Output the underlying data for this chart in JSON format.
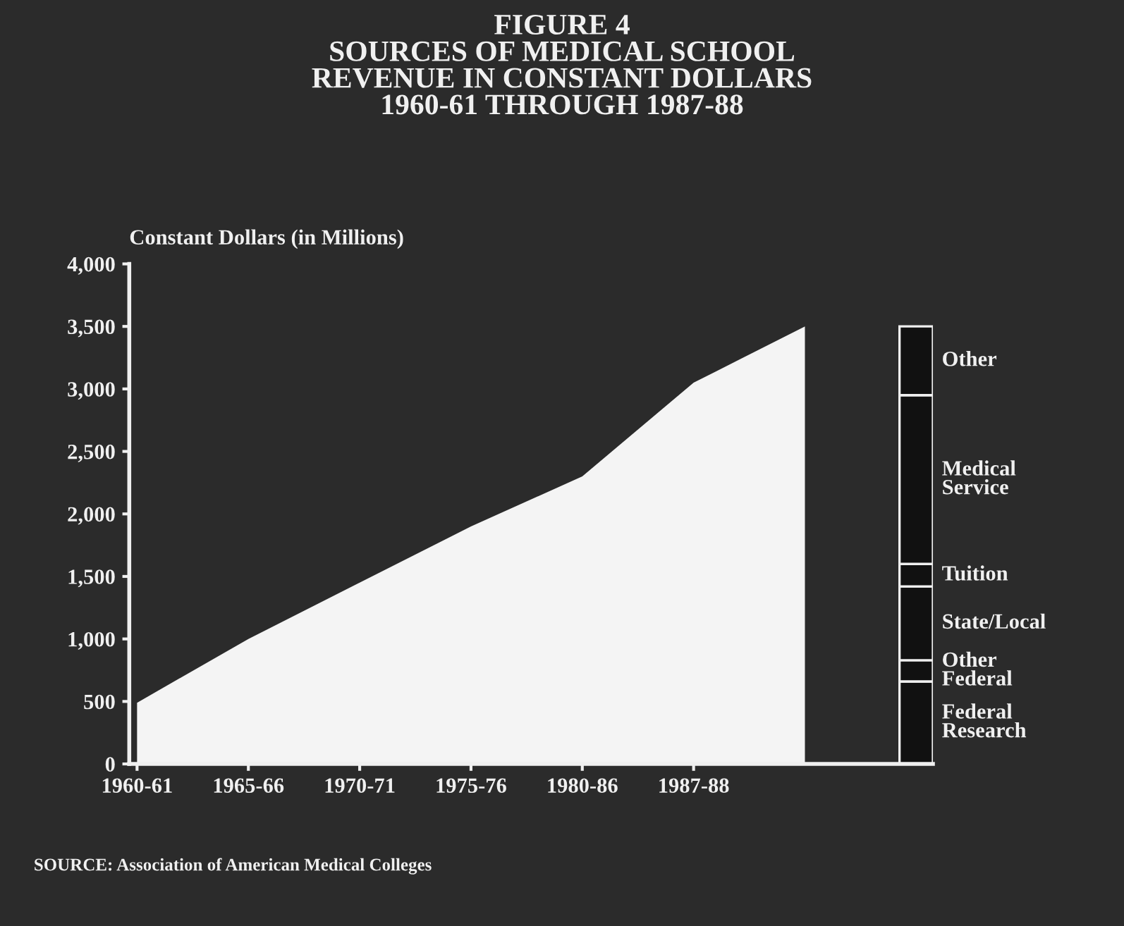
{
  "chart_data": {
    "type": "area",
    "title": "FIGURE 4\nSOURCES OF MEDICAL SCHOOL\nREVENUE IN CONSTANT DOLLARS\n1960-61 THROUGH 1987-88",
    "ylabel": "Constant Dollars (in Millions)",
    "categories": [
      "1960-61",
      "1965-66",
      "1970-71",
      "1975-76",
      "1980-86",
      "1987-88",
      null,
      null
    ],
    "stacked": true,
    "series": [
      {
        "color": "#f4f4f4",
        "values": [
          490,
          1000,
          1450,
          1900,
          2300,
          3050,
          3500,
          null
        ]
      },
      {
        "type": "bar",
        "name": "Federal\nResearch",
        "color": "#111111",
        "values": [
          null,
          null,
          null,
          null,
          null,
          null,
          null,
          660
        ]
      },
      {
        "type": "bar",
        "name": "Other\nFederal",
        "color": "#111111",
        "values": [
          null,
          null,
          null,
          null,
          null,
          null,
          null,
          170
        ]
      },
      {
        "type": "bar",
        "name": "State/Local",
        "color": "#111111",
        "values": [
          null,
          null,
          null,
          null,
          null,
          null,
          null,
          590
        ]
      },
      {
        "type": "bar",
        "name": "Tuition",
        "color": "#111111",
        "values": [
          null,
          null,
          null,
          null,
          null,
          null,
          null,
          180
        ]
      },
      {
        "type": "bar",
        "name": "Medical\nService",
        "color": "#111111",
        "values": [
          null,
          null,
          null,
          null,
          null,
          null,
          null,
          1350
        ]
      },
      {
        "type": "bar",
        "name": "Other",
        "color": "#111111",
        "values": [
          null,
          null,
          null,
          null,
          null,
          null,
          null,
          550
        ]
      }
    ],
    "ylim": [
      0,
      4000
    ],
    "yticks": [
      {
        "value": 0,
        "label": "0"
      },
      {
        "value": 500,
        "label": "500"
      },
      {
        "value": 1000,
        "label": "1,000"
      },
      {
        "value": 1500,
        "label": "1,500"
      },
      {
        "value": 2000,
        "label": "2,000"
      },
      {
        "value": 2500,
        "label": "2,500"
      },
      {
        "value": 3000,
        "label": "3,000"
      },
      {
        "value": 3500,
        "label": "3,500"
      },
      {
        "value": 4000,
        "label": "4,000"
      }
    ],
    "annotations": [
      "SOURCE: Association of American Medical Colleges"
    ]
  }
}
